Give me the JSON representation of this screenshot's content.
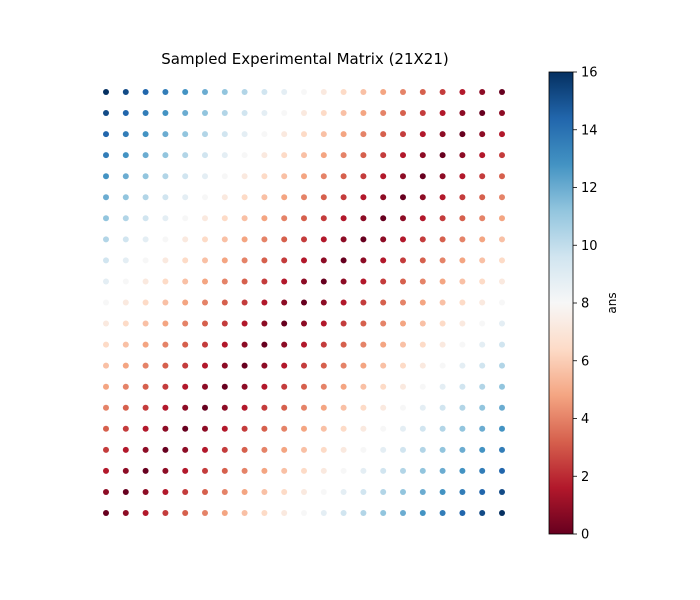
{
  "chart_data": {
    "type": "scatter",
    "title": "Sampled Experimental Matrix (21X21)",
    "grid_size": 21,
    "x_range": [
      0,
      20
    ],
    "y_range": [
      0,
      20
    ],
    "grid": false,
    "axes_visible": false,
    "colormap": "RdBu",
    "colors": {
      "low": "#67001f",
      "mid": "#f7f7f7",
      "high": "#053061"
    },
    "value_rule": "ans = |(20 - row) - col| * 16 / 20, row 0 = top",
    "colorbar": {
      "label": "ans",
      "min": 0,
      "max": 16,
      "ticks": [
        "0",
        "2",
        "4",
        "6",
        "8",
        "10",
        "12",
        "14",
        "16"
      ]
    }
  }
}
